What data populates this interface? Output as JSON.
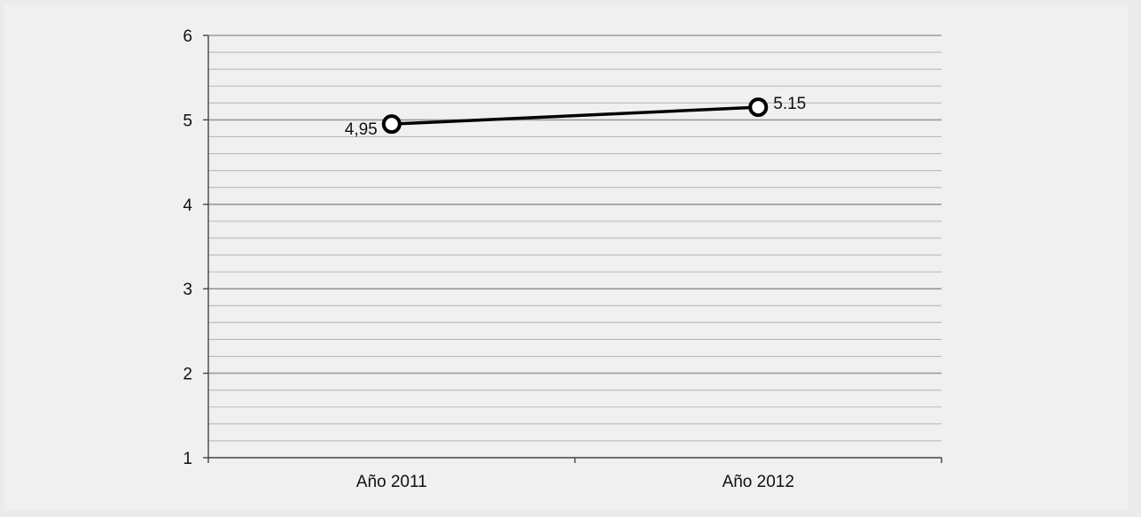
{
  "chart_data": {
    "type": "line",
    "categories": [
      "Año 2011",
      "Año 2012"
    ],
    "series": [
      {
        "values": [
          4.95,
          5.15
        ],
        "labels": [
          "4,95",
          "5.15"
        ],
        "color": "#000000"
      }
    ],
    "title": "",
    "xlabel": "",
    "ylabel": "",
    "ylim": [
      1,
      6
    ],
    "yticks": [
      "1",
      "2",
      "3",
      "4",
      "5",
      "6"
    ],
    "grid": true,
    "legend": "none"
  }
}
